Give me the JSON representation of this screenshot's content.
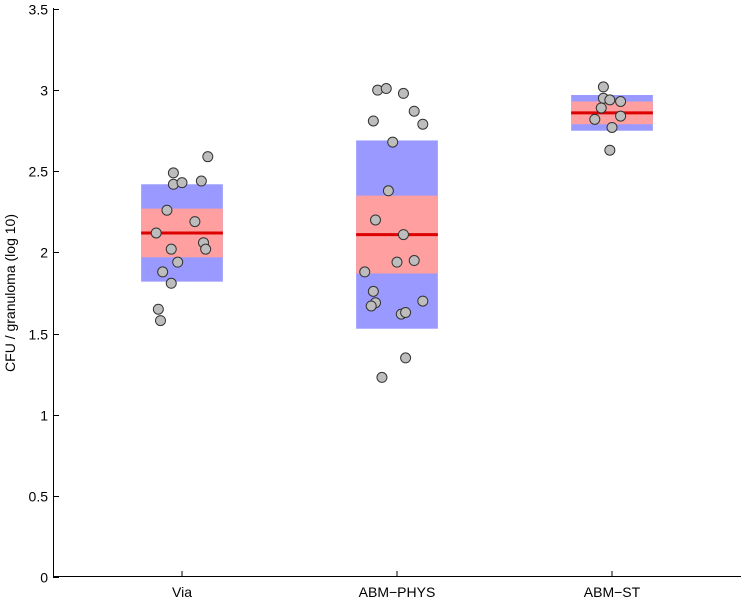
{
  "chart_data": {
    "type": "scatter",
    "subtype": "notBoxPlot",
    "ylabel": "CFU / granuloma (log 10)",
    "xlabel": "",
    "ylim": [
      0,
      3.5
    ],
    "yticks": [
      0,
      0.5,
      1,
      1.5,
      2,
      2.5,
      3,
      3.5
    ],
    "ytick_labels": [
      "0",
      "0.5",
      "1",
      "1.5",
      "2",
      "2.5",
      "3",
      "3.5"
    ],
    "xlim": [
      0.4,
      3.6
    ],
    "grid": false,
    "colors": {
      "sd_band": "#9999ff",
      "sem_band": "#ff9f9f",
      "mean_line": "#dd0000",
      "point_fill": "#bdbdbd",
      "point_edge": "#333333"
    },
    "groups": [
      {
        "name": "Via",
        "mean": 2.12,
        "sem": [
          1.97,
          2.27
        ],
        "sd": [
          1.82,
          2.42
        ],
        "points": [
          {
            "x": 0.88,
            "y": 2.12
          },
          {
            "x": 0.93,
            "y": 2.26
          },
          {
            "x": 0.96,
            "y": 2.49
          },
          {
            "x": 0.96,
            "y": 2.42
          },
          {
            "x": 1.0,
            "y": 2.43
          },
          {
            "x": 1.09,
            "y": 2.44
          },
          {
            "x": 1.12,
            "y": 2.59
          },
          {
            "x": 1.06,
            "y": 2.19
          },
          {
            "x": 0.95,
            "y": 2.02
          },
          {
            "x": 1.1,
            "y": 2.06
          },
          {
            "x": 1.11,
            "y": 2.02
          },
          {
            "x": 0.91,
            "y": 1.88
          },
          {
            "x": 0.98,
            "y": 1.94
          },
          {
            "x": 0.95,
            "y": 1.81
          },
          {
            "x": 0.89,
            "y": 1.65
          },
          {
            "x": 0.9,
            "y": 1.58
          }
        ]
      },
      {
        "name": "ABM−PHYS",
        "mean": 2.11,
        "sem": [
          1.87,
          2.35
        ],
        "sd": [
          1.53,
          2.69
        ],
        "points": [
          {
            "x": 1.91,
            "y": 3.0
          },
          {
            "x": 1.95,
            "y": 3.01
          },
          {
            "x": 2.03,
            "y": 2.98
          },
          {
            "x": 2.08,
            "y": 2.87
          },
          {
            "x": 1.89,
            "y": 2.81
          },
          {
            "x": 2.12,
            "y": 2.79
          },
          {
            "x": 1.98,
            "y": 2.68
          },
          {
            "x": 1.96,
            "y": 2.38
          },
          {
            "x": 1.9,
            "y": 2.2
          },
          {
            "x": 2.03,
            "y": 2.11
          },
          {
            "x": 2.08,
            "y": 1.95
          },
          {
            "x": 2.0,
            "y": 1.94
          },
          {
            "x": 1.85,
            "y": 1.88
          },
          {
            "x": 1.89,
            "y": 1.76
          },
          {
            "x": 1.9,
            "y": 1.69
          },
          {
            "x": 1.88,
            "y": 1.67
          },
          {
            "x": 2.12,
            "y": 1.7
          },
          {
            "x": 2.02,
            "y": 1.62
          },
          {
            "x": 2.04,
            "y": 1.63
          },
          {
            "x": 2.04,
            "y": 1.35
          },
          {
            "x": 1.93,
            "y": 1.23
          }
        ]
      },
      {
        "name": "ABM−ST",
        "mean": 2.86,
        "sem": [
          2.79,
          2.93
        ],
        "sd": [
          2.75,
          2.97
        ],
        "points": [
          {
            "x": 2.96,
            "y": 3.02
          },
          {
            "x": 2.96,
            "y": 2.95
          },
          {
            "x": 2.99,
            "y": 2.94
          },
          {
            "x": 3.04,
            "y": 2.93
          },
          {
            "x": 2.95,
            "y": 2.89
          },
          {
            "x": 3.04,
            "y": 2.84
          },
          {
            "x": 2.92,
            "y": 2.82
          },
          {
            "x": 3.0,
            "y": 2.77
          },
          {
            "x": 2.99,
            "y": 2.63
          }
        ]
      }
    ]
  }
}
